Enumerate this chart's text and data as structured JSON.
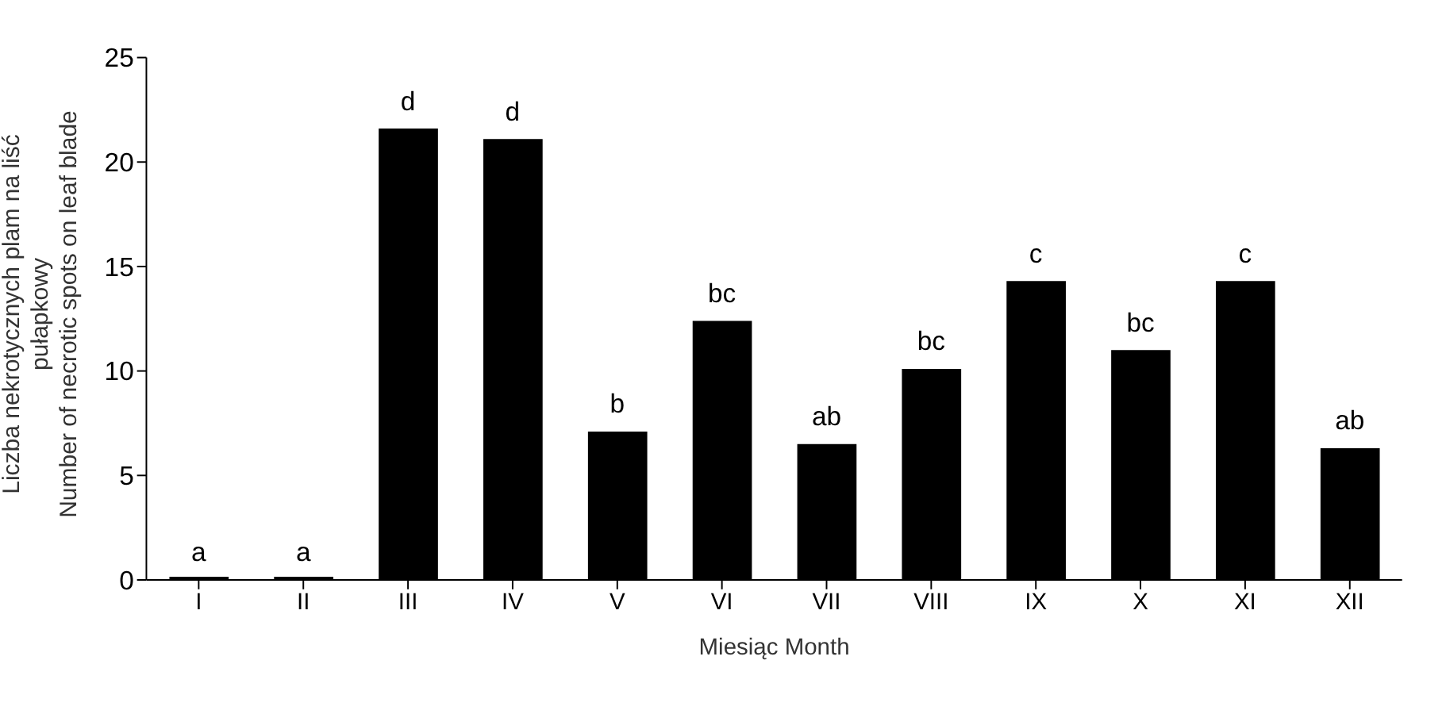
{
  "chart_data": {
    "type": "bar",
    "xlabel": "Miesiąc   Month",
    "ylabel": "Liczba nekrotycznych plam na liść\npułapkowy\nNumber of necrotic spots on leaf blade",
    "categories": [
      "I",
      "II",
      "III",
      "IV",
      "V",
      "VI",
      "VII",
      "VIII",
      "IX",
      "X",
      "XI",
      "XII"
    ],
    "values": [
      0,
      0,
      21.6,
      21.1,
      7.1,
      12.4,
      6.5,
      10.1,
      14.3,
      11.0,
      14.3,
      6.3
    ],
    "color": "#000000",
    "ylim": [
      0,
      25
    ],
    "yticks": [
      0,
      5,
      10,
      15,
      20,
      25
    ],
    "grid": false,
    "legend": false,
    "annotations": [
      {
        "text": "a",
        "x": "I",
        "y": 0
      },
      {
        "text": "a",
        "x": "II",
        "y": 0
      },
      {
        "text": "d",
        "x": "III",
        "y": 21.6
      },
      {
        "text": "d",
        "x": "IV",
        "y": 21.1
      },
      {
        "text": "b",
        "x": "V",
        "y": 7.1
      },
      {
        "text": "bc",
        "x": "VI",
        "y": 12.4
      },
      {
        "text": "ab",
        "x": "VII",
        "y": 6.5
      },
      {
        "text": "bc",
        "x": "VIII",
        "y": 10.1
      },
      {
        "text": "c",
        "x": "IX",
        "y": 14.3
      },
      {
        "text": "bc",
        "x": "X",
        "y": 11.0
      },
      {
        "text": "c",
        "x": "XI",
        "y": 14.3
      },
      {
        "text": "ab",
        "x": "XII",
        "y": 6.3
      }
    ]
  }
}
